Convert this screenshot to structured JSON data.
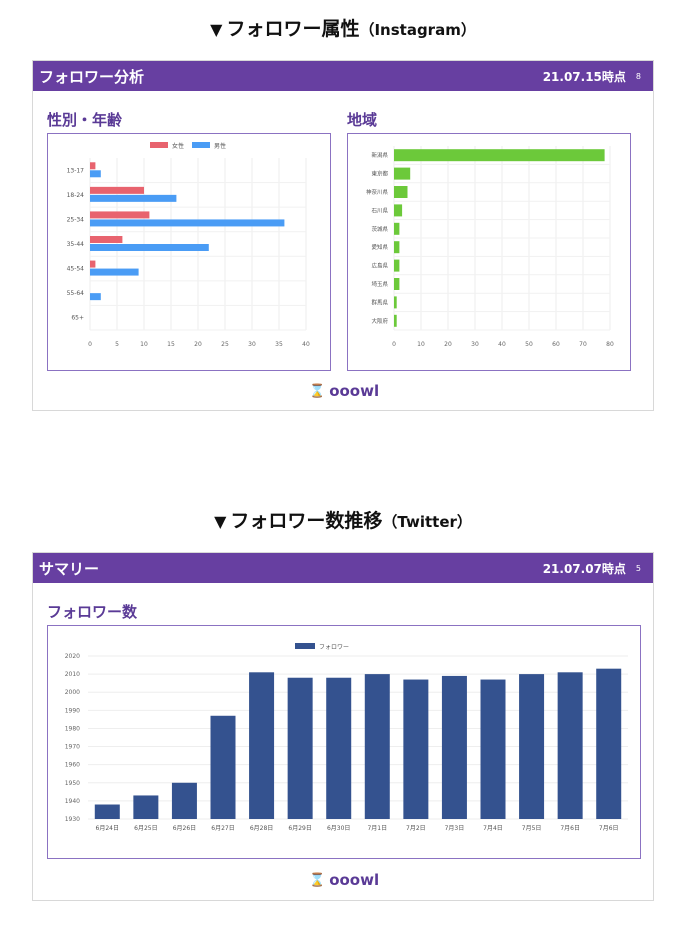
{
  "section1": {
    "heading_mark": "▼",
    "heading_main": "フォロワー属性",
    "heading_sub": "（Instagram）",
    "band_title": "フォロワー分析",
    "band_date": "21.07.15時点",
    "band_page": "8",
    "left_title": "性別・年齢",
    "right_title": "地域",
    "logo_text": "ooowl"
  },
  "section2": {
    "heading_mark": "▼",
    "heading_main": "フォロワー数推移",
    "heading_sub": "（Twitter）",
    "band_title": "サマリー",
    "band_date": "21.07.07時点",
    "band_page": "5",
    "panel_title": "フォロワー数",
    "logo_text": "ooowl"
  },
  "chart_data": [
    {
      "type": "bar",
      "orientation": "horizontal",
      "categories": [
        "13-17",
        "18-24",
        "25-34",
        "35-44",
        "45-54",
        "55-64",
        "65+"
      ],
      "series": [
        {
          "name": "女性",
          "color": "#e8636e",
          "values": [
            1,
            10,
            11,
            6,
            1,
            0,
            0
          ]
        },
        {
          "name": "男性",
          "color": "#4a9cf5",
          "values": [
            2,
            16,
            36,
            22,
            9,
            2,
            0
          ]
        }
      ],
      "xlim": [
        0,
        40
      ],
      "xticks": [
        0,
        5,
        10,
        15,
        20,
        25,
        30,
        35,
        40
      ],
      "legend": "top-center",
      "grid": true
    },
    {
      "type": "bar",
      "orientation": "horizontal",
      "categories": [
        "新潟県",
        "東京都",
        "神奈川県",
        "石川県",
        "茨城県",
        "愛知県",
        "広島県",
        "埼玉県",
        "群馬県",
        "大阪府"
      ],
      "values": [
        78,
        6,
        5,
        3,
        2,
        2,
        2,
        2,
        1,
        1
      ],
      "color": "#6cc93a",
      "xlim": [
        0,
        80
      ],
      "xticks": [
        0,
        10,
        20,
        30,
        40,
        50,
        60,
        70,
        80
      ],
      "grid": true
    },
    {
      "type": "bar",
      "categories": [
        "6月24日",
        "6月25日",
        "6月26日",
        "6月27日",
        "6月28日",
        "6月29日",
        "6月30日",
        "7月1日",
        "7月2日",
        "7月3日",
        "7月4日",
        "7月5日",
        "7月6日",
        "7月6日"
      ],
      "series": [
        {
          "name": "フォロワー",
          "color": "#34528f",
          "values": [
            1938,
            1943,
            1950,
            1987,
            2011,
            2008,
            2008,
            2010,
            2007,
            2009,
            2007,
            2010,
            2011,
            2013
          ]
        }
      ],
      "ylim": [
        1930,
        2020
      ],
      "yticks": [
        1930,
        1940,
        1950,
        1960,
        1970,
        1980,
        1990,
        2000,
        2010,
        2020
      ],
      "legend": "top-center",
      "grid": true
    }
  ]
}
